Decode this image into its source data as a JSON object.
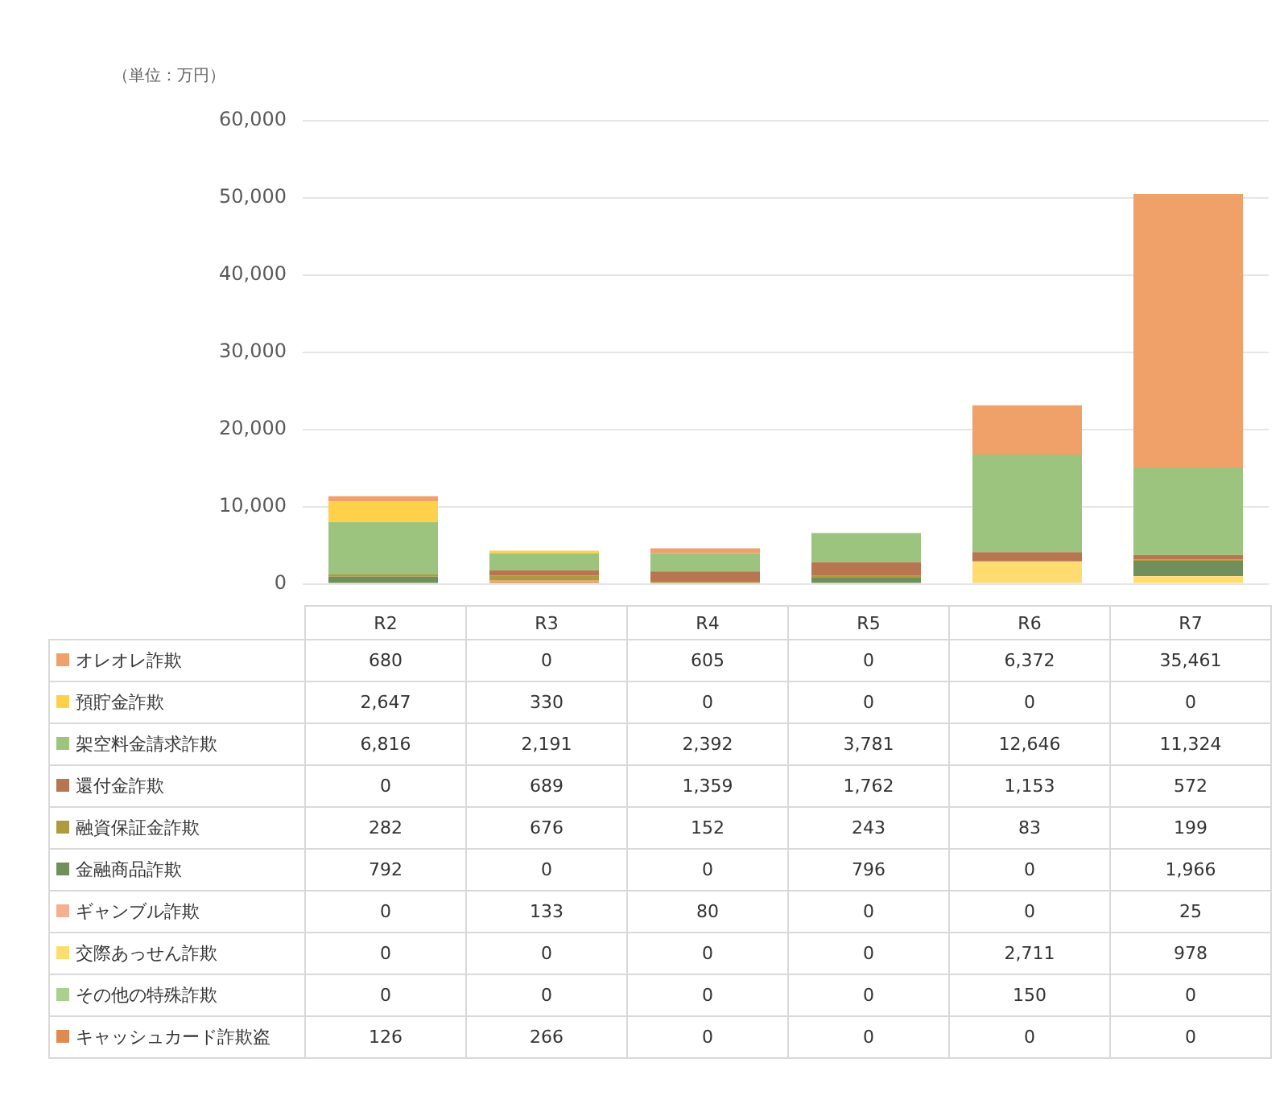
{
  "chart_data": {
    "type": "bar",
    "stacked": true,
    "annotations": [
      "（単位：万円）"
    ],
    "categories": [
      "R2",
      "R3",
      "R4",
      "R5",
      "R6",
      "R7"
    ],
    "ylim": [
      0,
      60000
    ],
    "yticks": [
      0,
      {
        "value": 10000,
        "label": "10,000"
      },
      {
        "value": 20000,
        "label": "20,000"
      },
      {
        "value": 30000,
        "label": "30,000"
      },
      {
        "value": 40000,
        "label": "40,000"
      },
      {
        "value": 50000,
        "label": "50,000"
      },
      {
        "value": 60000,
        "label": "60,000"
      }
    ],
    "grid": "y",
    "legend": "bottom",
    "series": [
      {
        "name": "キャッシュカード詐欺盗",
        "color": "#e08a50",
        "values": [
          126,
          266,
          0,
          0,
          0,
          0
        ],
        "value_labels": [
          "126",
          "266",
          "0",
          "0",
          "0",
          "0"
        ]
      },
      {
        "name": "その他の特殊詐欺",
        "color": "#a9d08e",
        "values": [
          0,
          0,
          0,
          0,
          150,
          0
        ],
        "value_labels": [
          "0",
          "0",
          "0",
          "0",
          "150",
          "0"
        ]
      },
      {
        "name": "交際あっせん詐欺",
        "color": "#ffdc70",
        "values": [
          0,
          0,
          0,
          0,
          2711,
          978
        ],
        "value_labels": [
          "0",
          "0",
          "0",
          "0",
          "2,711",
          "978"
        ]
      },
      {
        "name": "ギャンブル詐欺",
        "color": "#f4b090",
        "values": [
          0,
          133,
          80,
          0,
          0,
          25
        ],
        "value_labels": [
          "0",
          "133",
          "80",
          "0",
          "0",
          "25"
        ]
      },
      {
        "name": "金融商品詐欺",
        "color": "#708f5a",
        "values": [
          792,
          0,
          0,
          796,
          0,
          1966
        ],
        "value_labels": [
          "792",
          "0",
          "0",
          "796",
          "0",
          "1,966"
        ]
      },
      {
        "name": "融資保証金詐欺",
        "color": "#b09a40",
        "values": [
          282,
          676,
          152,
          243,
          83,
          199
        ],
        "value_labels": [
          "282",
          "676",
          "152",
          "243",
          "83",
          "199"
        ]
      },
      {
        "name": "還付金詐欺",
        "color": "#b87650",
        "values": [
          0,
          689,
          1359,
          1762,
          1153,
          572
        ],
        "value_labels": [
          "0",
          "689",
          "1,359",
          "1,762",
          "1,153",
          "572"
        ]
      },
      {
        "name": "架空料金請求詐欺",
        "color": "#9cc47e",
        "values": [
          6816,
          2191,
          2392,
          3781,
          12646,
          11324
        ],
        "value_labels": [
          "6,816",
          "2,191",
          "2,392",
          "3,781",
          "12,646",
          "11,324"
        ]
      },
      {
        "name": "預貯金詐欺",
        "color": "#ffd04a",
        "values": [
          2647,
          330,
          0,
          0,
          0,
          0
        ],
        "value_labels": [
          "2,647",
          "330",
          "0",
          "0",
          "0",
          "0"
        ]
      },
      {
        "name": "オレオレ詐欺",
        "color": "#f0a069",
        "values": [
          680,
          0,
          605,
          0,
          6372,
          35461
        ],
        "value_labels": [
          "680",
          "0",
          "605",
          "0",
          "6,372",
          "35,461"
        ]
      }
    ]
  }
}
